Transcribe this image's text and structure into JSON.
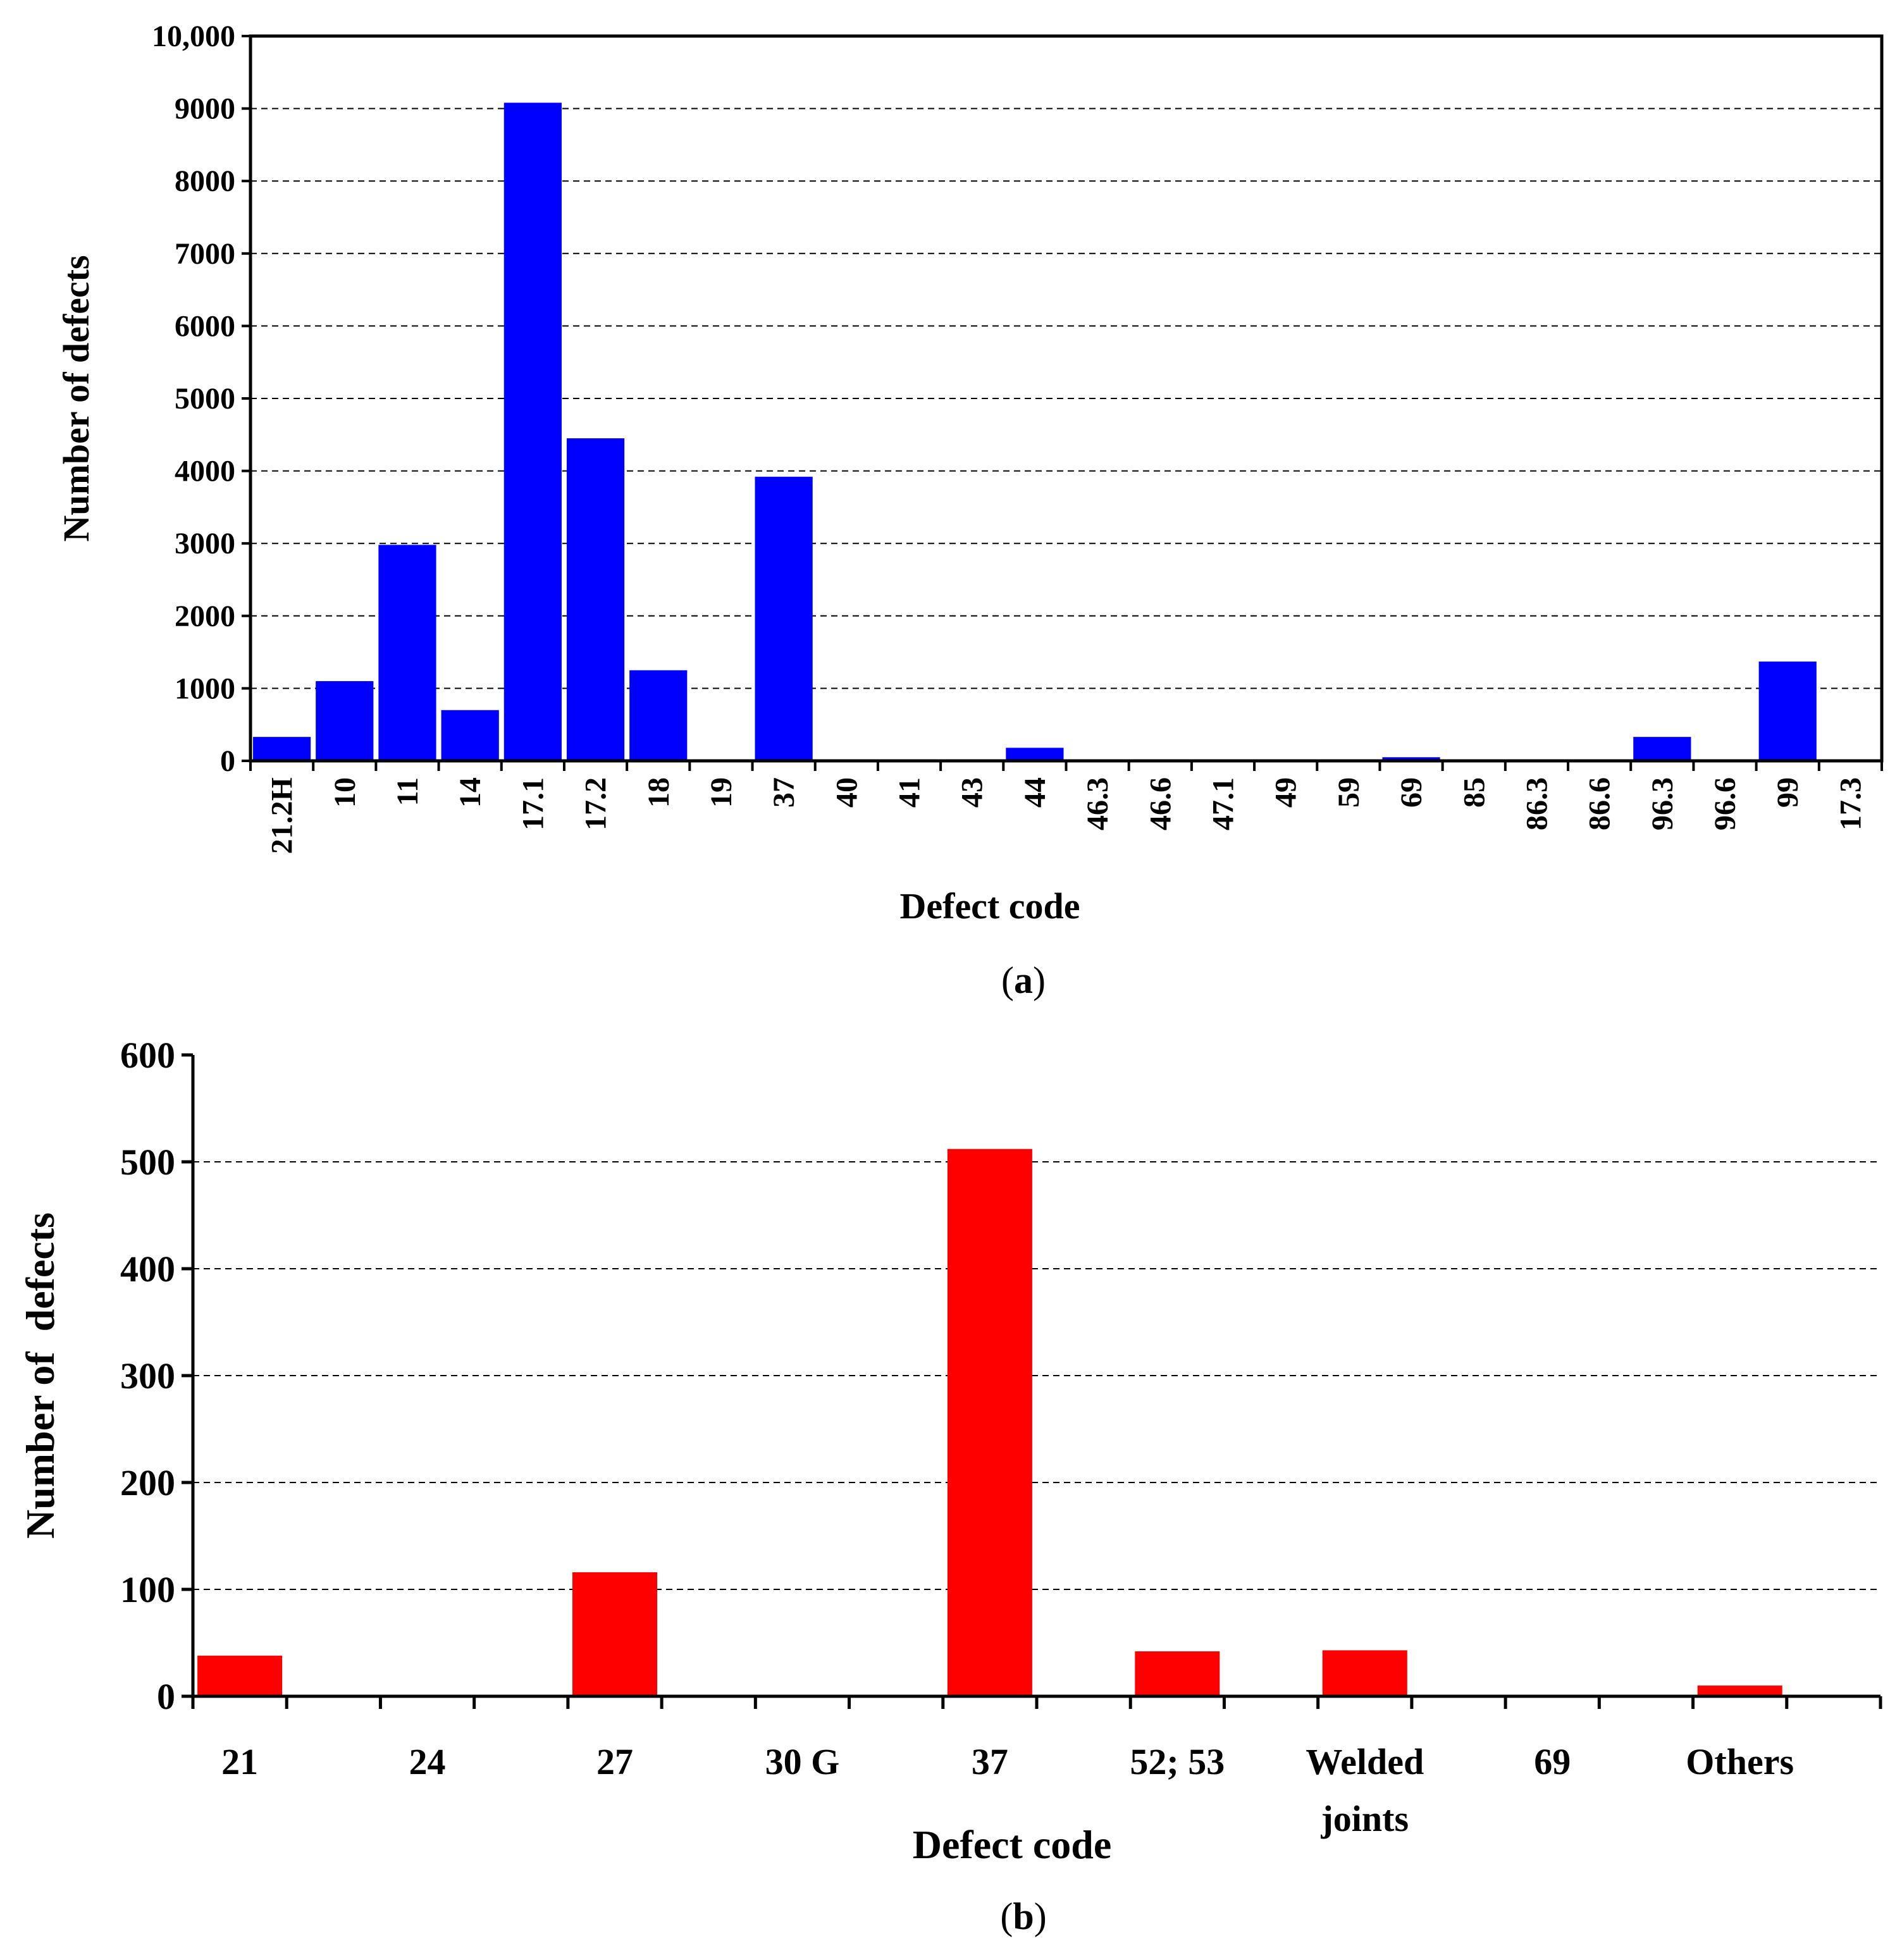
{
  "figure": {
    "panels": [
      {
        "caption_open": "(",
        "caption_letter": "a",
        "caption_close": ")"
      },
      {
        "caption_open": "(",
        "caption_letter": "b",
        "caption_close": ")"
      }
    ]
  },
  "chart_data": [
    {
      "type": "bar",
      "panel": "a",
      "title": "",
      "xlabel": "Defect code",
      "ylabel": "Number of defects",
      "ylim": [
        0,
        10000
      ],
      "yticks": [
        0,
        1000,
        2000,
        3000,
        4000,
        5000,
        6000,
        7000,
        8000,
        9000,
        10000
      ],
      "ytick_labels": [
        "0",
        "1000",
        "2000",
        "3000",
        "4000",
        "5000",
        "6000",
        "7000",
        "8000",
        "9000",
        "10,000"
      ],
      "grid": "horizontal dashed",
      "categories": [
        "21.2H",
        "10",
        "11",
        "14",
        "17.1",
        "17.2",
        "18",
        "19",
        "37",
        "40",
        "41",
        "43",
        "44",
        "46.3",
        "46.6",
        "47.1",
        "49",
        "59",
        "69",
        "85",
        "86.3",
        "86.6",
        "96.3",
        "96.6",
        "99",
        "17.3"
      ],
      "values": [
        330,
        1100,
        2980,
        700,
        9080,
        4450,
        1250,
        0,
        3920,
        0,
        0,
        0,
        180,
        0,
        0,
        0,
        0,
        0,
        50,
        0,
        0,
        0,
        330,
        0,
        1370,
        0
      ],
      "bar_color": "#0000ff"
    },
    {
      "type": "bar",
      "panel": "b",
      "title": "",
      "xlabel": "Defect code",
      "ylabel": "Number of  defects",
      "ylim": [
        0,
        600
      ],
      "yticks": [
        0,
        100,
        200,
        300,
        400,
        500,
        600
      ],
      "ytick_labels": [
        "0",
        "100",
        "200",
        "300",
        "400",
        "500",
        "600"
      ],
      "grid": "horizontal dashed",
      "categories": [
        "21",
        "24",
        "27",
        "30 G",
        "37",
        "52; 53",
        "Welded joints",
        "69",
        "Others"
      ],
      "category_lines": [
        [
          "21"
        ],
        [
          "24"
        ],
        [
          "27"
        ],
        [
          "30 G"
        ],
        [
          "37"
        ],
        [
          "52; 53"
        ],
        [
          "Welded",
          "joints"
        ],
        [
          "69"
        ],
        [
          "Others"
        ]
      ],
      "values": [
        38,
        0,
        116,
        0,
        512,
        42,
        43,
        0,
        10
      ],
      "bar_color": "#ff0000"
    }
  ]
}
